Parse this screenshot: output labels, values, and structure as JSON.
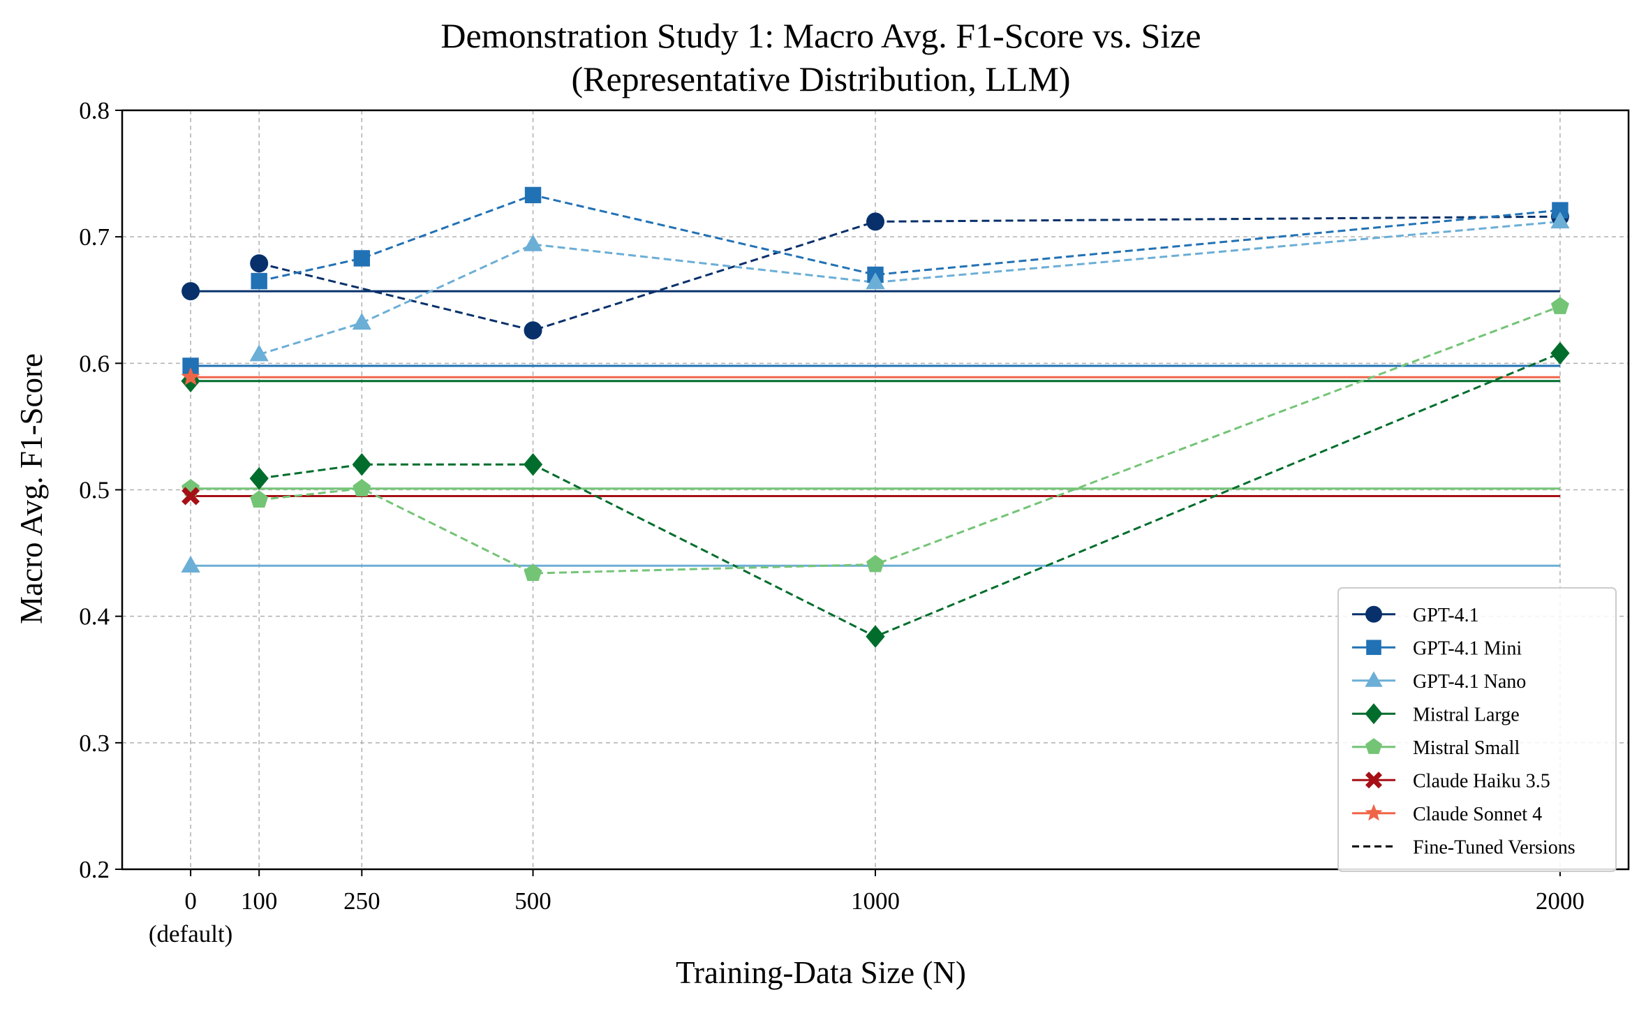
{
  "chart_data": {
    "type": "line",
    "title": "Demonstration Study 1: Macro Avg. F1-Score vs. Size",
    "subtitle": "(Representative Distribution, LLM)",
    "xlabel": "Training-Data Size (N)",
    "ylabel": "Macro Avg. F1-Score",
    "xlim": [
      -100,
      2100
    ],
    "ylim": [
      0.2,
      0.8
    ],
    "x_ticks": [
      0,
      100,
      250,
      500,
      1000,
      2000
    ],
    "x_tick_labels": [
      "0",
      "100",
      "250",
      "500",
      "1000",
      "2000"
    ],
    "x_tick_sublabel": "(default)",
    "y_ticks": [
      0.2,
      0.3,
      0.4,
      0.5,
      0.6,
      0.7,
      0.8
    ],
    "y_tick_labels": [
      "0.2",
      "0.3",
      "0.4",
      "0.5",
      "0.6",
      "0.7",
      "0.8"
    ],
    "grid": true,
    "legend_position": "lower right",
    "baseline_x_range": [
      0,
      2000
    ],
    "series": [
      {
        "name": "GPT-4.1",
        "color": "#08306b",
        "marker": "circle",
        "baseline": 0.657,
        "fine_tuned": {
          "x": [
            100,
            500,
            1000,
            2000
          ],
          "y": [
            0.679,
            0.626,
            0.712,
            0.716
          ]
        }
      },
      {
        "name": "GPT-4.1 Mini",
        "color": "#2171b5",
        "marker": "square",
        "baseline": 0.598,
        "fine_tuned": {
          "x": [
            100,
            250,
            500,
            1000,
            2000
          ],
          "y": [
            0.665,
            0.683,
            0.733,
            0.67,
            0.721
          ]
        }
      },
      {
        "name": "GPT-4.1 Nano",
        "color": "#6baed6",
        "marker": "triangle",
        "baseline": 0.44,
        "fine_tuned": {
          "x": [
            100,
            250,
            500,
            1000,
            2000
          ],
          "y": [
            0.607,
            0.632,
            0.694,
            0.664,
            0.712
          ]
        }
      },
      {
        "name": "Mistral Large",
        "color": "#006d2c",
        "marker": "diamond",
        "baseline": 0.586,
        "fine_tuned": {
          "x": [
            100,
            250,
            500,
            1000,
            2000
          ],
          "y": [
            0.509,
            0.52,
            0.52,
            0.384,
            0.608
          ]
        }
      },
      {
        "name": "Mistral Small",
        "color": "#74c476",
        "marker": "pentagon",
        "baseline": 0.501,
        "fine_tuned": {
          "x": [
            100,
            250,
            500,
            1000,
            2000
          ],
          "y": [
            0.492,
            0.501,
            0.434,
            0.441,
            0.645
          ]
        }
      },
      {
        "name": "Claude Haiku 3.5",
        "color": "#a50f15",
        "marker": "x",
        "baseline": 0.495,
        "fine_tuned": null
      },
      {
        "name": "Claude Sonnet 4",
        "color": "#ef6548",
        "marker": "star",
        "baseline": 0.589,
        "fine_tuned": null
      }
    ],
    "legend_extra": {
      "name": "Fine-Tuned Versions",
      "color": "#000000",
      "style": "dashed"
    }
  }
}
